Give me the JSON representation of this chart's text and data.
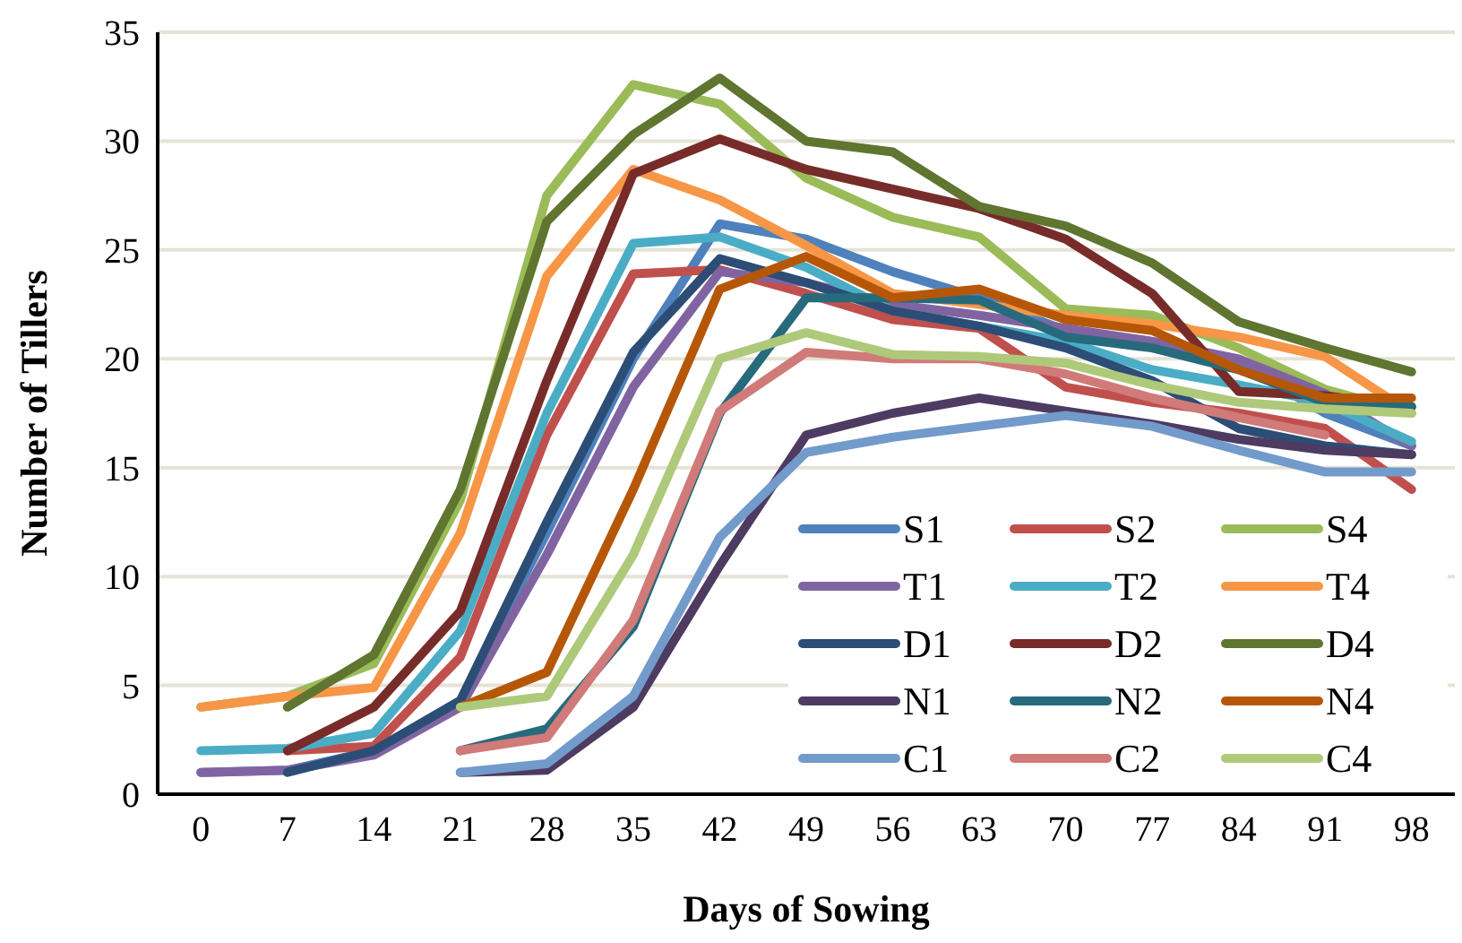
{
  "chart_data": {
    "type": "line",
    "xlabel": "Days of Sowing",
    "ylabel": "Number of Tillers",
    "categories": [
      "0",
      "7",
      "14",
      "21",
      "28",
      "35",
      "42",
      "49",
      "56",
      "63",
      "70",
      "77",
      "84",
      "91",
      "98"
    ],
    "ylim": [
      0,
      35
    ],
    "yticks": [
      0,
      5,
      10,
      15,
      20,
      25,
      30,
      35
    ],
    "grid": "y",
    "legend": "bottom right",
    "marker": "none",
    "line_style": "solid",
    "series": [
      {
        "name": "S1",
        "color": "#4f81bd",
        "values": [
          1,
          1.1,
          2,
          4.3,
          12,
          20,
          26.2,
          25.5,
          24,
          22.8,
          21.3,
          20.8,
          19.8,
          17.5,
          16
        ]
      },
      {
        "name": "S2",
        "color": "#c0504d",
        "values": [
          null,
          2,
          2.2,
          6.3,
          16.5,
          23.9,
          24.1,
          23,
          21.8,
          21.4,
          18.7,
          18,
          17.5,
          16.8,
          14
        ]
      },
      {
        "name": "S4",
        "color": "#9bbb59",
        "values": [
          4,
          4.5,
          6,
          13.5,
          27.5,
          32.6,
          31.7,
          28.3,
          26.5,
          25.6,
          22.3,
          22,
          20.5,
          18.6,
          17.5
        ]
      },
      {
        "name": "T1",
        "color": "#8064a2",
        "values": [
          1,
          1.1,
          1.8,
          4,
          11,
          18.7,
          24,
          23.5,
          22.5,
          22,
          21.4,
          20.8,
          20,
          18.4,
          16
        ]
      },
      {
        "name": "T2",
        "color": "#4bacc6",
        "values": [
          2,
          2.1,
          2.8,
          7.5,
          17.5,
          25.3,
          25.6,
          24.2,
          22.2,
          21.5,
          20.8,
          19.5,
          18.8,
          18,
          16.2
        ]
      },
      {
        "name": "T4",
        "color": "#f79646",
        "values": [
          4,
          4.5,
          4.9,
          12,
          23.8,
          28.7,
          27.3,
          25.2,
          23,
          22.5,
          22,
          21.6,
          21,
          20.1,
          17.5
        ]
      },
      {
        "name": "D1",
        "color": "#2c4d75",
        "values": [
          null,
          1,
          2,
          4.3,
          12.5,
          20.3,
          24.6,
          23.5,
          22.2,
          21.5,
          20.5,
          19,
          16.8,
          16,
          15.6
        ]
      },
      {
        "name": "D2",
        "color": "#772c2a",
        "values": [
          null,
          2,
          4,
          8.4,
          19,
          28.5,
          30.1,
          28.7,
          27.8,
          26.9,
          25.5,
          23,
          18.5,
          18.3,
          17.8
        ]
      },
      {
        "name": "D4",
        "color": "#5f7530",
        "values": [
          null,
          4,
          6.4,
          14,
          26.3,
          30.3,
          32.9,
          30,
          29.5,
          27,
          26.1,
          24.4,
          21.7,
          20.5,
          19.4
        ]
      },
      {
        "name": "N1",
        "color": "#4d3b62",
        "values": [
          null,
          null,
          null,
          1,
          1.1,
          4,
          10.5,
          16.5,
          17.5,
          18.2,
          17.6,
          17,
          16.3,
          15.8,
          15.6
        ]
      },
      {
        "name": "N2",
        "color": "#276a7c",
        "values": [
          null,
          null,
          null,
          2,
          3,
          7.7,
          17.5,
          22.8,
          22.8,
          22.7,
          21,
          20.5,
          19.5,
          18,
          17.8
        ]
      },
      {
        "name": "N4",
        "color": "#b65708",
        "values": [
          null,
          null,
          null,
          4,
          5.6,
          14,
          23.2,
          24.7,
          22.8,
          23.2,
          21.8,
          21.3,
          19.5,
          18.2,
          18.2
        ]
      },
      {
        "name": "C1",
        "color": "#729aca",
        "values": [
          null,
          null,
          null,
          1,
          1.4,
          4.5,
          11.8,
          15.7,
          16.4,
          16.9,
          17.4,
          16.9,
          15.8,
          14.8,
          14.8
        ]
      },
      {
        "name": "C2",
        "color": "#d07b79",
        "values": [
          null,
          null,
          null,
          2,
          2.6,
          8,
          17.6,
          20.3,
          20,
          20,
          19.3,
          18.2,
          17.3,
          16.5,
          null
        ]
      },
      {
        "name": "C4",
        "color": "#afc97a",
        "values": [
          null,
          null,
          null,
          4,
          4.5,
          11,
          20,
          21.2,
          20.2,
          20.1,
          19.8,
          18.8,
          18,
          17.7,
          17.5
        ]
      }
    ]
  }
}
